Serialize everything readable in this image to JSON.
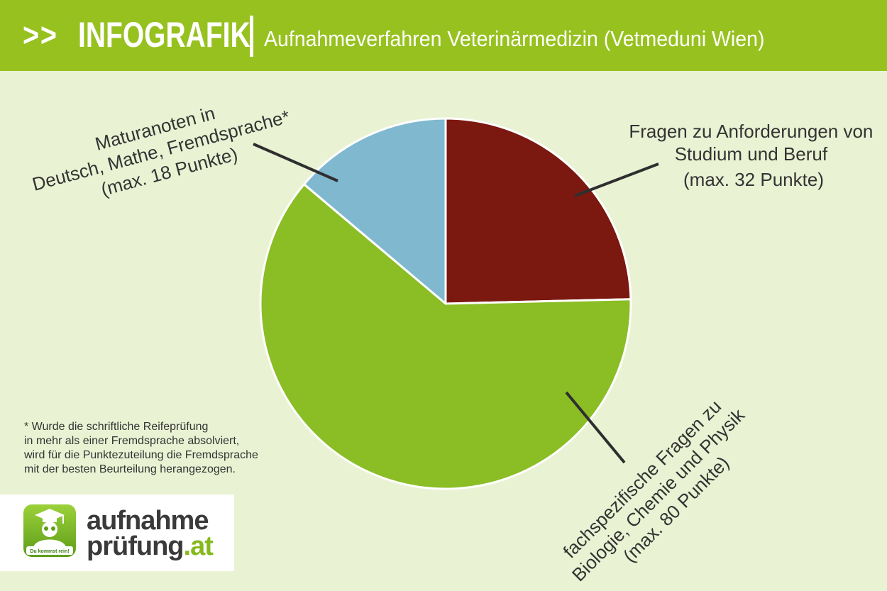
{
  "header": {
    "arrows": ">>",
    "title": "INFOGRAFIK",
    "subtitle": "Aufnahmeverfahren Veterinärmedizin (Vetmeduni Wien)"
  },
  "chart_data": {
    "type": "pie",
    "title": "",
    "slices": [
      {
        "name": "Fragen zu Anforderungen von Studium und Beruf",
        "value": 32,
        "label_lines": [
          "Fragen zu Anforderungen von",
          "Studium und Beruf",
          "(max. 32 Punkte)"
        ],
        "color": "#7b1810"
      },
      {
        "name": "fachspezifische Fragen zu Biologie, Chemie und Physik",
        "value": 80,
        "label_lines": [
          "fachspezifische Fragen zu",
          "Biologie, Chemie und Physik",
          "(max. 80 Punkte)"
        ],
        "color": "#8bbd25"
      },
      {
        "name": "Maturanoten in Deutsch, Mathe, Fremdsprache*",
        "value": 18,
        "label_lines": [
          "Maturanoten in",
          "Deutsch, Mathe, Fremdsprache*",
          "(max. 18 Punkte)"
        ],
        "color": "#7fb8cf"
      }
    ],
    "start_angle_deg": 0,
    "direction": "clockwise",
    "legend": "none"
  },
  "footnote": "* Wurde die schriftliche Reifeprüfung\nin mehr als einer Fremdsprache absolviert,\nwird für die Punktezuteilung die Fremdsprache\nmit der besten Beurteilung herangezogen.",
  "logo": {
    "word1": "aufnahme",
    "word2": "prüfung",
    "word2_suffix": ".at",
    "badge": "Du kommst rein!"
  }
}
